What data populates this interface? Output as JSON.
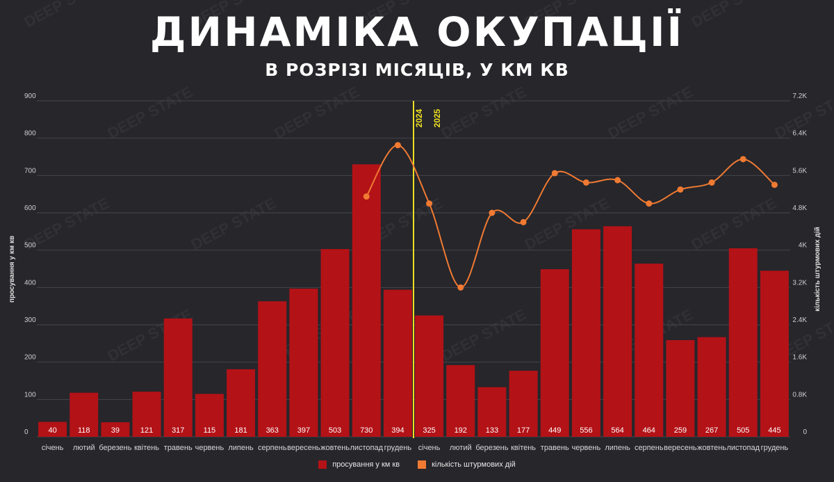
{
  "header": {
    "title": "ДИНАМІКА ОКУПАЦІЇ",
    "subtitle": "В РОЗРІЗІ МІСЯЦІВ, У КМ КВ"
  },
  "watermark": "DEEP STATE",
  "colors": {
    "bar": "#b31217",
    "line": "#f07a32",
    "divider": "#f0e020",
    "background": "#26262b",
    "grid": "#45454c"
  },
  "chart_data": {
    "type": "bar",
    "title": "ДИНАМІКА ОКУПАЦІЇ",
    "subtitle": "В РОЗРІЗІ МІСЯЦІВ, У КМ КВ",
    "ylabel": "просування у км кв",
    "y2label": "кількість штурмових дій",
    "ylim": [
      0,
      900
    ],
    "y2lim": [
      0,
      7200
    ],
    "yticks": [
      "0",
      "100",
      "200",
      "300",
      "400",
      "500",
      "600",
      "700",
      "800",
      "900"
    ],
    "y2ticks": [
      "0",
      "0.8K",
      "1.6K",
      "2.4K",
      "3.2K",
      "4K",
      "4.8K",
      "5.6K",
      "6.4K",
      "7.2K"
    ],
    "grid": true,
    "legend_position": "bottom-center",
    "categories": [
      "січень",
      "лютий",
      "березень",
      "квітень",
      "травень",
      "червень",
      "липень",
      "серпень",
      "вересень",
      "жовтень",
      "листопад",
      "грудень",
      "січень",
      "лютий",
      "березень",
      "квітень",
      "травень",
      "червень",
      "липень",
      "серпень",
      "вересень",
      "жовтень",
      "листопад",
      "грудень"
    ],
    "year_labels": [
      "2024",
      "2025"
    ],
    "series": [
      {
        "name": "просування у км кв",
        "type": "bar",
        "axis": "left",
        "values": [
          40,
          118,
          39,
          121,
          317,
          115,
          181,
          363,
          397,
          503,
          730,
          394,
          325,
          192,
          133,
          177,
          449,
          556,
          564,
          464,
          259,
          267,
          505,
          445
        ]
      },
      {
        "name": "кількість штурмових дій",
        "type": "line",
        "axis": "right",
        "values": [
          null,
          null,
          null,
          null,
          null,
          null,
          null,
          null,
          null,
          null,
          5150,
          6250,
          5000,
          3200,
          4800,
          4600,
          5650,
          5450,
          5500,
          5000,
          5300,
          5450,
          5950,
          5400
        ]
      }
    ]
  }
}
